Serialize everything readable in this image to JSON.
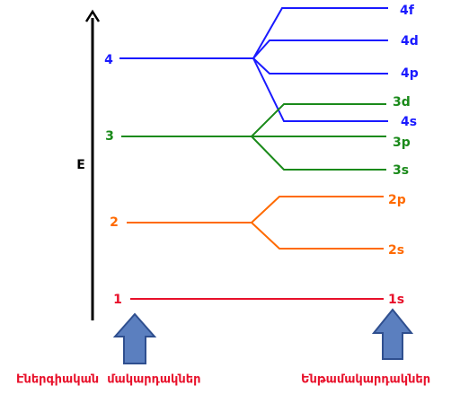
{
  "axis_label": "E",
  "levels": [
    {
      "label": "4",
      "color": "#1a1aff",
      "sublevels": [
        "4f",
        "4d",
        "4p",
        "4s"
      ]
    },
    {
      "label": "3",
      "color": "#1a8a1a",
      "sublevels": [
        "3d",
        "3p",
        "3s"
      ]
    },
    {
      "label": "2",
      "color": "#ff6a00",
      "sublevels": [
        "2p",
        "2s"
      ]
    },
    {
      "label": "1",
      "color": "#e8102a",
      "sublevels": [
        "1s"
      ]
    }
  ],
  "captions": {
    "left": "Էներգիական  մակարդակներ",
    "right": "Ենթամակարդակներ"
  }
}
